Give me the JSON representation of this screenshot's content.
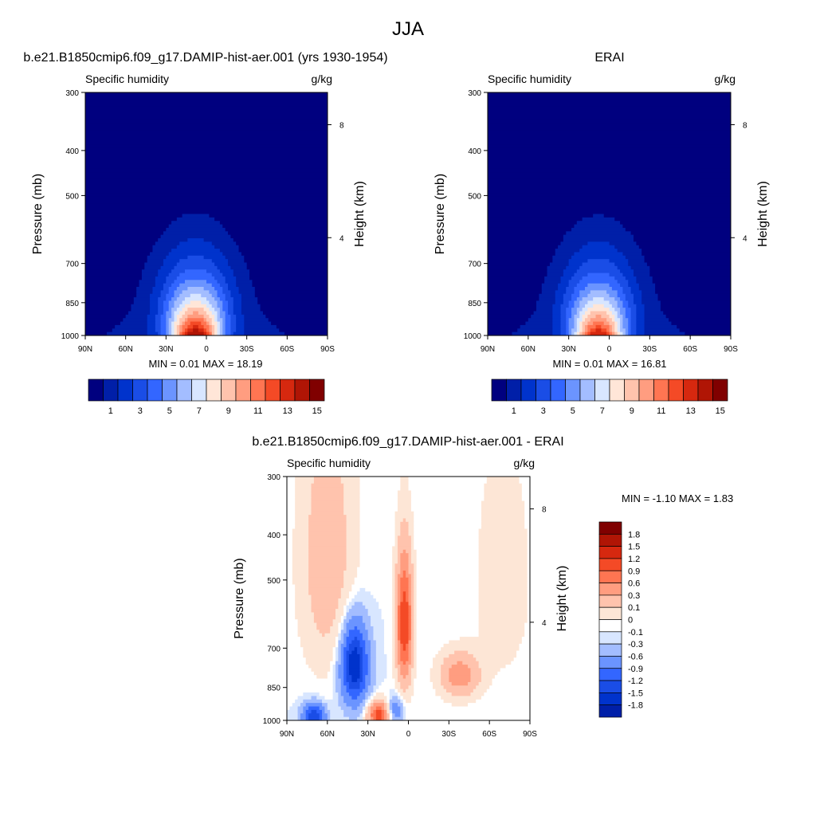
{
  "figure": {
    "title": "JJA"
  },
  "chart_data": [
    {
      "type": "heatmap",
      "title": "b.e21.B1850cmip6.f09_g17.DAMIP-hist-aer.001 (yrs 1930-1954)",
      "left_label": "Specific humidity",
      "right_label": "g/kg",
      "ylabel": "Pressure (mb)",
      "ylabel_right": "Height (km)",
      "x_ticks": [
        "90N",
        "60N",
        "30N",
        "0",
        "30S",
        "60S",
        "90S"
      ],
      "y_ticks": [
        "300",
        "400",
        "500",
        "700",
        "850",
        "1000"
      ],
      "y_ticks_right": [
        "8",
        "4"
      ],
      "xlim": [
        90,
        -90
      ],
      "ylim": [
        1000,
        300
      ],
      "min_max_text": "MIN =   0.01  MAX =  18.19",
      "peak_value": 18.19,
      "peak_lat": 8,
      "colorbar_labels": [
        "1",
        "3",
        "5",
        "7",
        "9",
        "11",
        "13",
        "15"
      ]
    },
    {
      "type": "heatmap",
      "title": "ERAI",
      "left_label": "Specific humidity",
      "right_label": "g/kg",
      "ylabel": "Pressure (mb)",
      "ylabel_right": "Height (km)",
      "x_ticks": [
        "90N",
        "60N",
        "30N",
        "0",
        "30S",
        "60S",
        "90S"
      ],
      "y_ticks": [
        "300",
        "400",
        "500",
        "700",
        "850",
        "1000"
      ],
      "y_ticks_right": [
        "8",
        "4"
      ],
      "xlim": [
        90,
        -90
      ],
      "ylim": [
        1000,
        300
      ],
      "min_max_text": "MIN =   0.01  MAX =  16.81",
      "peak_value": 16.81,
      "peak_lat": 8,
      "colorbar_labels": [
        "1",
        "3",
        "5",
        "7",
        "9",
        "11",
        "13",
        "15"
      ]
    },
    {
      "type": "heatmap",
      "title": "b.e21.B1850cmip6.f09_g17.DAMIP-hist-aer.001 - ERAI",
      "left_label": "Specific humidity",
      "right_label": "g/kg",
      "ylabel": "Pressure (mb)",
      "ylabel_right": "Height (km)",
      "x_ticks": [
        "90N",
        "60N",
        "30N",
        "0",
        "30S",
        "60S",
        "90S"
      ],
      "y_ticks": [
        "300",
        "400",
        "500",
        "700",
        "850",
        "1000"
      ],
      "y_ticks_right": [
        "8",
        "4"
      ],
      "xlim": [
        90,
        -90
      ],
      "ylim": [
        1000,
        300
      ],
      "min_max_text": "MIN =  -1.10  MAX =   1.83",
      "colorbar_labels": [
        "1.8",
        "1.5",
        "1.2",
        "0.9",
        "0.6",
        "0.3",
        "0.1",
        "0",
        "-0.1",
        "-0.3",
        "-0.6",
        "-0.9",
        "-1.2",
        "-1.5",
        "-1.8"
      ]
    }
  ],
  "colors": {
    "abs_scale": [
      "#00007f",
      "#001fa8",
      "#0033cc",
      "#1a4de6",
      "#3366ff",
      "#6b94ff",
      "#a3bdff",
      "#d8e6ff",
      "#ffe6d8",
      "#ffc3ad",
      "#ff9d80",
      "#ff7552",
      "#f44a26",
      "#d6280f",
      "#b01505",
      "#800000"
    ],
    "diff_scale": [
      "#800000",
      "#b01505",
      "#d6280f",
      "#f44a26",
      "#ff7552",
      "#ff9d80",
      "#ffc3ad",
      "#fde6d6",
      "#ffffff",
      "#d8e6ff",
      "#a3bdff",
      "#6b94ff",
      "#3366ff",
      "#1a4de6",
      "#0033cc",
      "#001fa8",
      "#00007f"
    ]
  }
}
